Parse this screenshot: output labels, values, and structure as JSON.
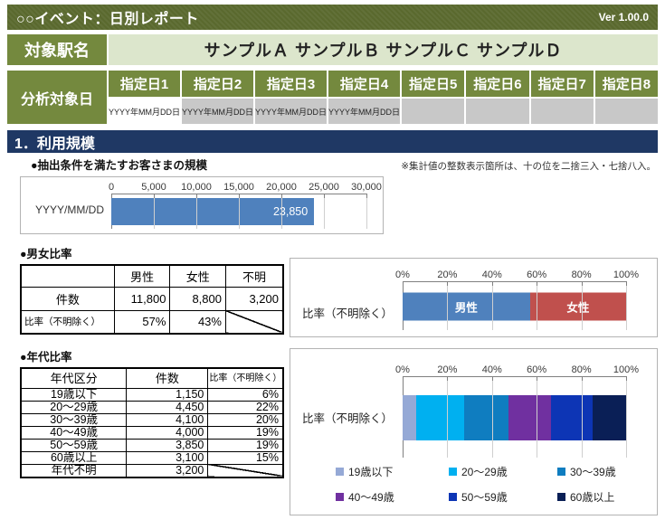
{
  "header": {
    "title": "○○イベント：日別レポート",
    "version": "Ver 1.00.0"
  },
  "station": {
    "label": "対象駅名",
    "value": "サンプルＡ サンプルＢ サンプルＣ サンプルＤ"
  },
  "analysis_days": {
    "label": "分析対象日",
    "columns": [
      {
        "label": "指定日1",
        "date": "YYYY年MM月DD日",
        "state": "active"
      },
      {
        "label": "指定日2",
        "date": "YYYY年MM月DD日",
        "state": "filled"
      },
      {
        "label": "指定日3",
        "date": "YYYY年MM月DD日",
        "state": "filled"
      },
      {
        "label": "指定日4",
        "date": "YYYY年MM月DD日",
        "state": "filled"
      },
      {
        "label": "指定日5",
        "date": "",
        "state": "empty"
      },
      {
        "label": "指定日6",
        "date": "",
        "state": "empty"
      },
      {
        "label": "指定日7",
        "date": "",
        "state": "empty"
      },
      {
        "label": "指定日8",
        "date": "",
        "state": "empty"
      }
    ]
  },
  "section": {
    "title": "1．利用規模",
    "subtitle": "●抽出条件を満たすお客さまの規模",
    "note": "※集計値の整数表示箇所は、十の位を二捨三入・七捨八入。"
  },
  "gender": {
    "title": "●男女比率",
    "table": {
      "columns": [
        "",
        "男性",
        "女性",
        "不明"
      ],
      "rows": [
        {
          "label": "件数",
          "values": [
            "11,800",
            "8,800",
            "3,200"
          ],
          "diagonal_last": false
        },
        {
          "label": "比率（不明除く）",
          "values": [
            "57%",
            "43%"
          ],
          "diagonal_last": true
        }
      ]
    }
  },
  "age": {
    "title": "●年代比率",
    "table": {
      "columns": [
        "年代区分",
        "件数",
        "比率（不明除く）"
      ],
      "rows": [
        {
          "cells": [
            "19歳以下",
            "1,150",
            "6%"
          ],
          "diagonal_last": false
        },
        {
          "cells": [
            "20〜29歳",
            "4,450",
            "22%"
          ],
          "diagonal_last": false
        },
        {
          "cells": [
            "30〜39歳",
            "4,100",
            "20%"
          ],
          "diagonal_last": false
        },
        {
          "cells": [
            "40〜49歳",
            "4,000",
            "19%"
          ],
          "diagonal_last": false
        },
        {
          "cells": [
            "50〜59歳",
            "3,850",
            "19%"
          ],
          "diagonal_last": false
        },
        {
          "cells": [
            "60歳以上",
            "3,100",
            "15%"
          ],
          "diagonal_last": false
        },
        {
          "cells": [
            "年代不明",
            "3,200"
          ],
          "diagonal_last": true
        }
      ]
    }
  },
  "chart_data": [
    {
      "id": "usage-scale",
      "type": "bar",
      "orientation": "horizontal",
      "title": "抽出条件を満たすお客さまの規模",
      "categories": [
        "YYYY/MM/DD"
      ],
      "values": [
        23850
      ],
      "data_labels": [
        "23,850"
      ],
      "xlim": [
        0,
        30000
      ],
      "xticks": [
        0,
        5000,
        10000,
        15000,
        20000,
        25000,
        30000
      ],
      "xtick_labels": [
        "0",
        "5,000",
        "10,000",
        "15,000",
        "20,000",
        "25,000",
        "30,000"
      ],
      "bar_color": "#4f81bd",
      "grid": true,
      "legend_position": "none"
    },
    {
      "id": "gender-ratio",
      "type": "bar",
      "subtype": "stacked-100",
      "orientation": "horizontal",
      "category_label": "比率（不明除く）",
      "xlim": [
        0,
        100
      ],
      "xtick_labels": [
        "0%",
        "20%",
        "40%",
        "60%",
        "80%",
        "100%"
      ],
      "series": [
        {
          "name": "男性",
          "value": 57,
          "color": "#4f81bd"
        },
        {
          "name": "女性",
          "value": 43,
          "color": "#c0504d"
        }
      ],
      "segment_labels": true,
      "grid": true,
      "legend_position": "none"
    },
    {
      "id": "age-ratio",
      "type": "bar",
      "subtype": "stacked-100",
      "orientation": "horizontal",
      "category_label": "比率（不明除く）",
      "xlim": [
        0,
        100
      ],
      "xtick_labels": [
        "0%",
        "20%",
        "40%",
        "60%",
        "80%",
        "100%"
      ],
      "series": [
        {
          "name": "19歳以下",
          "value": 6,
          "color": "#95a9d6"
        },
        {
          "name": "20〜29歳",
          "value": 22,
          "color": "#00b0f0"
        },
        {
          "name": "30〜39歳",
          "value": 20,
          "color": "#0f7dc0"
        },
        {
          "name": "40〜49歳",
          "value": 19,
          "color": "#7030a0"
        },
        {
          "name": "50〜59歳",
          "value": 19,
          "color": "#0d35b5"
        },
        {
          "name": "60歳以上",
          "value": 15,
          "color": "#0a1f56"
        }
      ],
      "segment_labels": false,
      "grid": true,
      "legend_position": "bottom"
    }
  ],
  "colors": {
    "title_bar_olive": "#5a692e",
    "header_green": "#74893e",
    "value_pale_green": "#dce6cc",
    "disabled_gray": "#c8c8c8",
    "section_navy": "#1f3864",
    "male_blue": "#4f81bd",
    "female_red": "#c0504d"
  }
}
